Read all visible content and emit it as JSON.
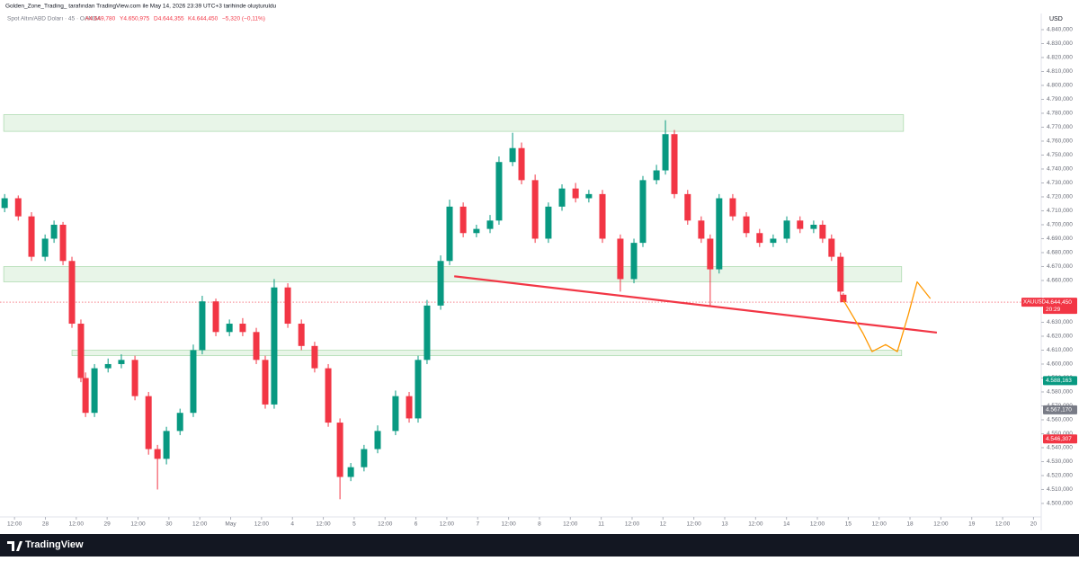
{
  "header": {
    "attribution": "Golden_Zone_Trading_ tarafından TradingView.com ile May 14, 2026 23:39 UTC+3 tarihinde oluşturuldu",
    "symbol": "Spot Altın/ABD Doları · 45 · OANDA",
    "ohlc": [
      "A4.649,780",
      "Y4.650,975",
      "D4.644,355",
      "K4.644,450"
    ],
    "change": "−5,320 (−0,11%)"
  },
  "footer": {
    "brand": "TradingView"
  },
  "chart_data": {
    "type": "candlestick",
    "currency": "USD",
    "colors": {
      "up": "#089981",
      "down": "#f23645"
    },
    "x": [
      -0.32,
      0.12,
      0.55,
      0.99,
      1.28,
      1.57,
      1.86,
      2.15,
      2.3,
      2.59,
      3.03,
      3.46,
      3.9,
      4.34,
      4.63,
      4.92,
      5.36,
      5.79,
      6.08,
      6.52,
      6.96,
      7.39,
      7.83,
      8.12,
      8.41,
      8.85,
      9.29,
      9.72,
      10.16,
      10.54,
      10.89,
      11.32,
      11.76,
      12.34,
      12.78,
      13.07,
      13.36,
      13.8,
      14.09,
      14.53,
      14.96,
      15.4,
      15.69,
      16.13,
      16.42,
      16.86,
      17.29,
      17.73,
      18.17,
      18.6,
      19.04,
      19.62,
      20.06,
      20.35,
      20.79,
      21.08,
      21.37,
      21.8,
      22.24,
      22.53,
      22.82,
      23.26,
      23.7,
      24.13,
      24.57,
      25.01,
      25.44,
      25.88,
      26.17,
      26.46,
      26.75,
      26.84
    ],
    "open": [
      4712,
      4719,
      4706,
      4677,
      4690,
      4700,
      4674,
      4629,
      4590,
      4565,
      4597,
      4600,
      4603,
      4577,
      4539,
      4532,
      4552,
      4565,
      4610,
      4645,
      4623,
      4629,
      4623,
      4603,
      4571,
      4655,
      4629,
      4613,
      4597,
      4558,
      4519,
      4526,
      4539,
      4552,
      4577,
      4561,
      4603,
      4642,
      4674,
      4713,
      4694,
      4697,
      4703,
      4745,
      4755,
      4732,
      4690,
      4713,
      4726,
      4719,
      4722,
      4690,
      4661,
      4687,
      4732,
      4739,
      4765,
      4722,
      4703,
      4690,
      4668,
      4719,
      4706,
      4694,
      4687,
      4690,
      4703,
      4697,
      4700,
      4690,
      4677,
      4649.78
    ],
    "high": [
      4722,
      4721,
      4709,
      4693,
      4703,
      4702,
      4677,
      4632,
      4594,
      4600,
      4604,
      4607,
      4606,
      4580,
      4542,
      4555,
      4568,
      4614,
      4649,
      4647,
      4632,
      4633,
      4626,
      4606,
      4661,
      4658,
      4632,
      4616,
      4600,
      4561,
      4529,
      4542,
      4556,
      4581,
      4580,
      4606,
      4646,
      4678,
      4718,
      4716,
      4700,
      4707,
      4749,
      4766,
      4759,
      4736,
      4716,
      4729,
      4730,
      4725,
      4725,
      4693,
      4690,
      4735,
      4743,
      4775,
      4768,
      4725,
      4706,
      4693,
      4722,
      4722,
      4709,
      4697,
      4693,
      4706,
      4706,
      4703,
      4703,
      4693,
      4680,
      4650.975
    ],
    "low": [
      4709,
      4703,
      4674,
      4674,
      4687,
      4671,
      4626,
      4587,
      4562,
      4562,
      4594,
      4597,
      4574,
      4535,
      4510,
      4528,
      4549,
      4562,
      4607,
      4620,
      4620,
      4620,
      4600,
      4568,
      4568,
      4626,
      4610,
      4594,
      4555,
      4503,
      4516,
      4523,
      4536,
      4549,
      4558,
      4558,
      4600,
      4639,
      4671,
      4691,
      4691,
      4694,
      4700,
      4742,
      4729,
      4687,
      4687,
      4710,
      4716,
      4716,
      4687,
      4652,
      4658,
      4684,
      4729,
      4736,
      4719,
      4700,
      4687,
      4642,
      4665,
      4703,
      4691,
      4684,
      4684,
      4687,
      4694,
      4694,
      4687,
      4674,
      4649,
      4644.355
    ],
    "close": [
      4719,
      4706,
      4677,
      4690,
      4700,
      4674,
      4629,
      4590,
      4565,
      4597,
      4600,
      4603,
      4577,
      4539,
      4532,
      4552,
      4565,
      4610,
      4645,
      4623,
      4629,
      4623,
      4603,
      4571,
      4655,
      4629,
      4613,
      4597,
      4558,
      4519,
      4526,
      4539,
      4552,
      4577,
      4561,
      4603,
      4642,
      4674,
      4713,
      4694,
      4697,
      4703,
      4745,
      4755,
      4732,
      4690,
      4713,
      4726,
      4719,
      4722,
      4690,
      4661,
      4687,
      4732,
      4739,
      4765,
      4722,
      4703,
      4690,
      4668,
      4719,
      4706,
      4694,
      4687,
      4690,
      4703,
      4697,
      4700,
      4690,
      4677,
      4652,
      4644.45
    ],
    "xlim": [
      -0.47,
      33.25
    ],
    "ylim": [
      4490.3,
      4851.6
    ],
    "xticks": [
      {
        "value": 0,
        "label": "12:00"
      },
      {
        "value": 1,
        "label": "28"
      },
      {
        "value": 2,
        "label": "12:00"
      },
      {
        "value": 3,
        "label": "29"
      },
      {
        "value": 4,
        "label": "12:00"
      },
      {
        "value": 5,
        "label": "30"
      },
      {
        "value": 6,
        "label": "12:00"
      },
      {
        "value": 7,
        "label": "May"
      },
      {
        "value": 8,
        "label": "12:00"
      },
      {
        "value": 9,
        "label": "4"
      },
      {
        "value": 10,
        "label": "12:00"
      },
      {
        "value": 11,
        "label": "5"
      },
      {
        "value": 12,
        "label": "12:00"
      },
      {
        "value": 13,
        "label": "6"
      },
      {
        "value": 14,
        "label": "12:00"
      },
      {
        "value": 15,
        "label": "7"
      },
      {
        "value": 16,
        "label": "12:00"
      },
      {
        "value": 17,
        "label": "8"
      },
      {
        "value": 18,
        "label": "12:00"
      },
      {
        "value": 19,
        "label": "11"
      },
      {
        "value": 20,
        "label": "12:00"
      },
      {
        "value": 21,
        "label": "12"
      },
      {
        "value": 22,
        "label": "12:00"
      },
      {
        "value": 23,
        "label": "13"
      },
      {
        "value": 24,
        "label": "12:00"
      },
      {
        "value": 25,
        "label": "14"
      },
      {
        "value": 26,
        "label": "12:00"
      },
      {
        "value": 27,
        "label": "15"
      },
      {
        "value": 28,
        "label": "12:00"
      },
      {
        "value": 29,
        "label": "18"
      },
      {
        "value": 30,
        "label": "12:00"
      },
      {
        "value": 31,
        "label": "19"
      },
      {
        "value": 32,
        "label": "12:00"
      },
      {
        "value": 33,
        "label": "20"
      }
    ],
    "yticks": [
      {
        "value": 4500,
        "label": "4.500,000"
      },
      {
        "value": 4510,
        "label": "4.510,000"
      },
      {
        "value": 4520,
        "label": "4.520,000"
      },
      {
        "value": 4530,
        "label": "4.530,000"
      },
      {
        "value": 4540,
        "label": "4.540,000"
      },
      {
        "value": 4550,
        "label": "4.550,000"
      },
      {
        "value": 4560,
        "label": "4.560,000"
      },
      {
        "value": 4570,
        "label": "4.570,000"
      },
      {
        "value": 4580,
        "label": "4.580,000"
      },
      {
        "value": 4590,
        "label": "4.590,000"
      },
      {
        "value": 4600,
        "label": "4.600,000"
      },
      {
        "value": 4610,
        "label": "4.610,000"
      },
      {
        "value": 4620,
        "label": "4.620,000"
      },
      {
        "value": 4630,
        "label": "4.630,000"
      },
      {
        "value": 4660,
        "label": "4.660,000"
      },
      {
        "value": 4670,
        "label": "4.670,000"
      },
      {
        "value": 4680,
        "label": "4.680,000"
      },
      {
        "value": 4690,
        "label": "4.690,000"
      },
      {
        "value": 4700,
        "label": "4.700,000"
      },
      {
        "value": 4710,
        "label": "4.710,000"
      },
      {
        "value": 4720,
        "label": "4.720,000"
      },
      {
        "value": 4730,
        "label": "4.730,000"
      },
      {
        "value": 4740,
        "label": "4.740,000"
      },
      {
        "value": 4750,
        "label": "4.750,000"
      },
      {
        "value": 4760,
        "label": "4.760,000"
      },
      {
        "value": 4770,
        "label": "4.770,000"
      },
      {
        "value": 4780,
        "label": "4.780,000"
      },
      {
        "value": 4790,
        "label": "4.790,000"
      },
      {
        "value": 4800,
        "label": "4.800,000"
      },
      {
        "value": 4810,
        "label": "4.810,000"
      },
      {
        "value": 4820,
        "label": "4.820,000"
      },
      {
        "value": 4830,
        "label": "4.830,000"
      },
      {
        "value": 4840,
        "label": "4.840,000"
      }
    ],
    "zones": [
      {
        "top": 4779,
        "bottom": 4767,
        "x": [
          -0.35,
          28.79
        ]
      },
      {
        "top": 4670,
        "bottom": 4659,
        "x": [
          -0.35,
          28.73
        ]
      },
      {
        "top": 4610,
        "bottom": 4606,
        "x": [
          1.86,
          28.73
        ]
      }
    ],
    "trendline": {
      "color": "#f23645",
      "x": [
        14.24,
        29.87
      ],
      "y": [
        4663,
        4622.6
      ]
    },
    "projection": {
      "color": "#ff9800",
      "x": [
        26.84,
        27.48,
        27.77,
        28.21,
        28.59,
        28.94,
        29.23,
        29.66
      ],
      "y": [
        4646,
        4622,
        4609,
        4614,
        4609,
        4635,
        4659,
        4647
      ]
    },
    "price_tag": {
      "symbol": "XAUUSD",
      "value": 4644.45,
      "label": "4.644,450",
      "countdown": "20:29",
      "color": "#f23645"
    },
    "axis_markers": [
      {
        "value": 4588.163,
        "label": "4.588,163",
        "color": "#089981"
      },
      {
        "value": 4567.17,
        "label": "4.567,170",
        "color": "#787b86"
      },
      {
        "value": 4546.307,
        "label": "4.546,307",
        "color": "#f23645"
      }
    ]
  }
}
